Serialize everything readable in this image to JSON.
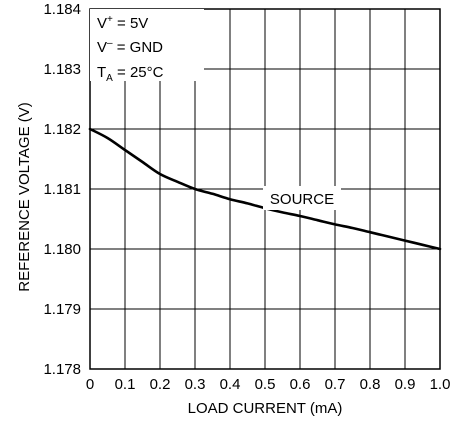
{
  "chart_data": {
    "type": "line",
    "title": "",
    "xlabel": "LOAD CURRENT (mA)",
    "ylabel": "REFERENCE VOLTAGE (V)",
    "xlim": [
      0,
      1.0
    ],
    "ylim": [
      1.178,
      1.184
    ],
    "x_ticks": [
      0,
      0.1,
      0.2,
      0.3,
      0.4,
      0.5,
      0.6,
      0.7,
      0.8,
      0.9,
      1.0
    ],
    "y_ticks": [
      1.178,
      1.179,
      1.18,
      1.181,
      1.182,
      1.183,
      1.184
    ],
    "x_tick_labels": [
      "0",
      "0.1",
      "0.2",
      "0.3",
      "0.4",
      "0.5",
      "0.6",
      "0.7",
      "0.8",
      "0.9",
      "1.0"
    ],
    "y_tick_labels": [
      "1.178",
      "1.179",
      "1.180",
      "1.181",
      "1.182",
      "1.183",
      "1.184"
    ],
    "grid": true,
    "legend": "none",
    "series": [
      {
        "name": "SOURCE",
        "x": [
          0,
          0.05,
          0.1,
          0.15,
          0.2,
          0.25,
          0.3,
          0.35,
          0.4,
          0.45,
          0.5,
          0.55,
          0.6,
          0.65,
          0.7,
          0.75,
          0.8,
          0.85,
          0.9,
          0.95,
          1.0
        ],
        "y": [
          1.182,
          1.18185,
          1.18165,
          1.18145,
          1.18125,
          1.18112,
          1.181,
          1.18092,
          1.18083,
          1.18076,
          1.18068,
          1.18061,
          1.18055,
          1.18048,
          1.18041,
          1.18035,
          1.18028,
          1.18021,
          1.18014,
          1.18007,
          1.18
        ]
      }
    ],
    "annotations": {
      "vplus_base": "V",
      "vplus_sup": "+",
      "vplus_rest": " = 5V",
      "vminus_base": "V",
      "vminus_sup": "–",
      "vminus_rest": " = GND",
      "ta_base": "T",
      "ta_sub": "A",
      "ta_rest": " = 25°C"
    },
    "colors": {
      "line": "#000000",
      "grid": "#000000",
      "frame": "#000000",
      "background": "#ffffff"
    }
  }
}
